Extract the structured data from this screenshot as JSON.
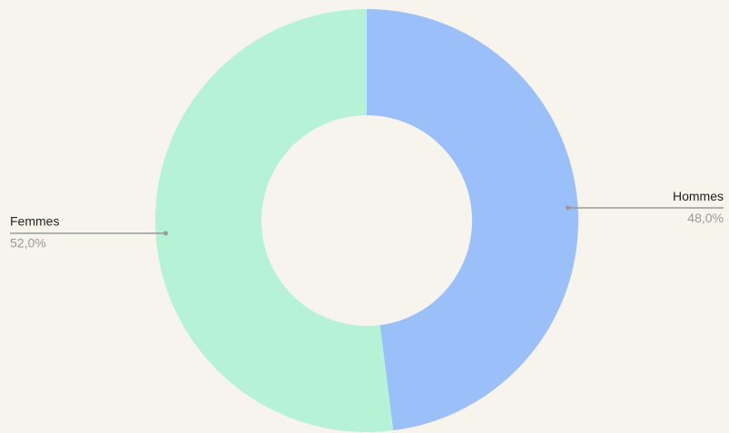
{
  "chart_data": {
    "type": "donut",
    "categories": [
      "Hommes",
      "Femmes"
    ],
    "values": [
      48,
      52
    ],
    "value_labels": [
      "48,0%",
      "52,0%"
    ],
    "colors": [
      "#9bbff9",
      "#b5f2d6"
    ]
  }
}
